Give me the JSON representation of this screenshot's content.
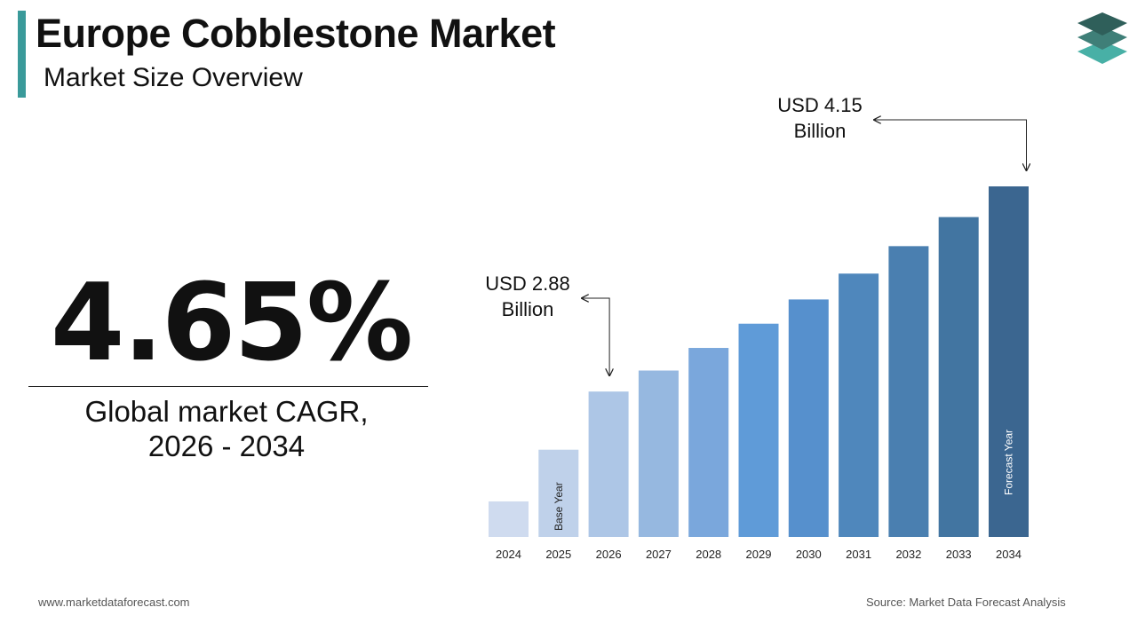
{
  "header": {
    "title": "Europe Cobblestone Market",
    "subtitle": "Market Size Overview"
  },
  "colors": {
    "accent": "#3a9a9a",
    "logo_top": "#2f5f5a",
    "logo_mid": "#3f7f78",
    "logo_bottom": "#48b0a6"
  },
  "kpi": {
    "cagr_value": "4.65%",
    "cagr_label_line1": "Global market CAGR,",
    "cagr_label_line2": "2026 - 2034"
  },
  "footer": {
    "website": "www.marketdataforecast.com",
    "source": "Source: Market Data Forecast Analysis"
  },
  "chart_data": {
    "type": "bar",
    "categories": [
      "2024",
      "2025",
      "2026",
      "2027",
      "2028",
      "2029",
      "2030",
      "2031",
      "2032",
      "2033",
      "2034"
    ],
    "values": [
      2.2,
      2.52,
      2.88,
      3.01,
      3.15,
      3.3,
      3.45,
      3.61,
      3.78,
      3.96,
      4.15
    ],
    "colors": [
      "#cfdbef",
      "#bfd1ea",
      "#adc6e6",
      "#96b8e0",
      "#7aa7dc",
      "#5f9bd8",
      "#5690cd",
      "#4f87bc",
      "#4a7fb0",
      "#4275a1",
      "#3b6690"
    ],
    "bar_labels": [
      {
        "index": 1,
        "text": "Base Year",
        "color": "#222222"
      },
      {
        "index": 10,
        "text": "Forecast Year",
        "color": "#ffffff"
      }
    ],
    "callouts": [
      {
        "index": 2,
        "line1": "USD 2.88",
        "line2": "Billion"
      },
      {
        "index": 10,
        "line1": "USD 4.15",
        "line2": "Billion"
      }
    ],
    "ylim": [
      1.98,
      4.15
    ]
  }
}
